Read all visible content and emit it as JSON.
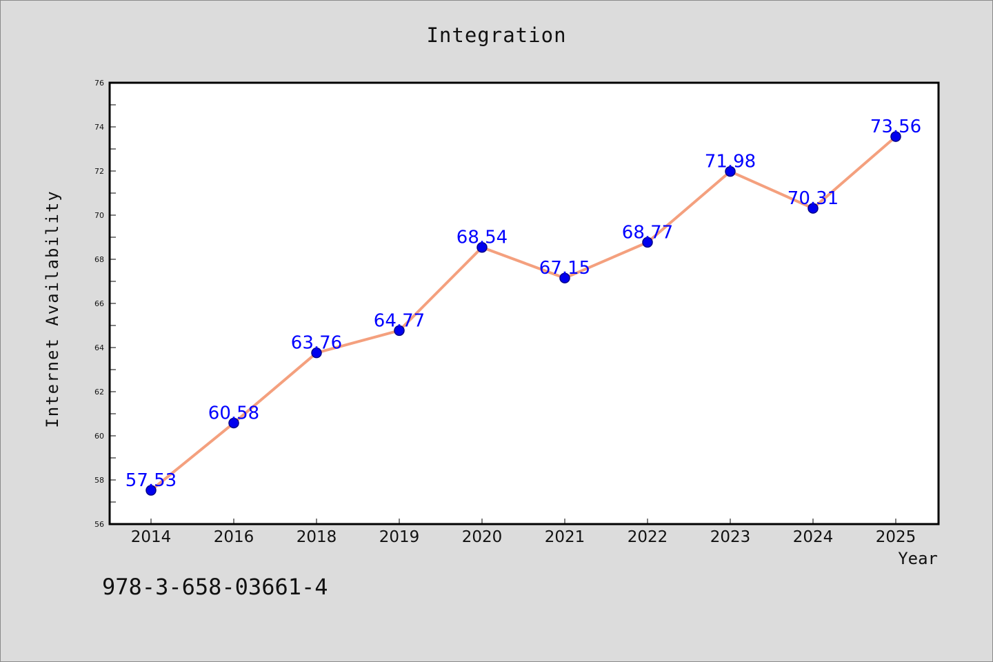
{
  "chart_data": {
    "type": "line",
    "title": "Integration",
    "xlabel": "Year",
    "ylabel": "Internet Availability",
    "categories": [
      "2014",
      "2016",
      "2018",
      "2019",
      "2020",
      "2021",
      "2022",
      "2023",
      "2024",
      "2025"
    ],
    "series": [
      {
        "values": [
          57.53,
          60.58,
          63.76,
          64.77,
          68.54,
          67.15,
          68.77,
          71.98,
          70.31,
          73.56
        ]
      }
    ],
    "data_labels": [
      "57.53",
      "60.58",
      "63.76",
      "64.77",
      "68.54",
      "67.15",
      "68.77",
      "71.98",
      "70.31",
      "73.56"
    ],
    "ylim": [
      56,
      76
    ],
    "y_ticks": [
      "56",
      "58",
      "60",
      "62",
      "64",
      "66",
      "68",
      "70",
      "72",
      "74",
      "76"
    ],
    "grid": false,
    "legend": "none",
    "colors": {
      "line": "#f4a07e",
      "marker": "#0000ee",
      "marker_edge": "#000088",
      "data_label": "#0000ff",
      "plot_bg": "#ffffff",
      "page_bg": "#dcdcdc"
    }
  },
  "annotation": "978-3-658-03661-4"
}
